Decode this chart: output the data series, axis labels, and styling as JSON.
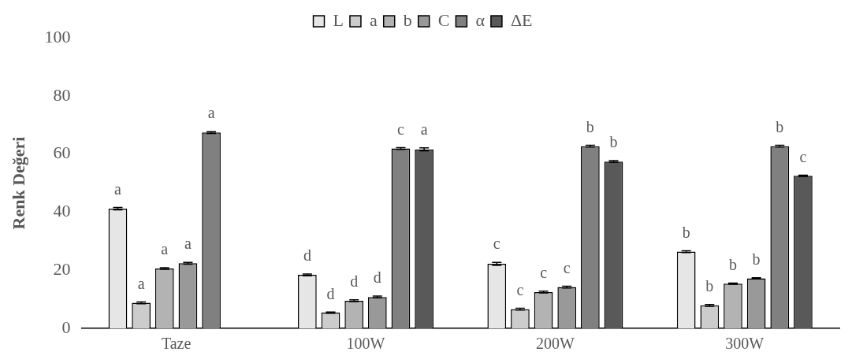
{
  "chart_data": {
    "type": "bar",
    "ylabel": "Renk Değeri",
    "categories": [
      "Taze",
      "100W",
      "200W",
      "300W"
    ],
    "series": [
      {
        "name": "L",
        "color": "#e6e6e6",
        "values": [
          41.2,
          18.4,
          22.2,
          26.4
        ],
        "errors": [
          0.4,
          0.3,
          0.5,
          0.3
        ],
        "value_labels": [
          "a",
          "d",
          "c",
          "b"
        ]
      },
      {
        "name": "a",
        "color": "#cccccc",
        "values": [
          8.8,
          5.4,
          6.6,
          7.9
        ],
        "errors": [
          0.3,
          0.2,
          0.3,
          0.3
        ],
        "value_labels": [
          "a",
          "d",
          "c",
          "b"
        ]
      },
      {
        "name": "b",
        "color": "#b3b3b3",
        "values": [
          20.6,
          9.5,
          12.5,
          15.4
        ],
        "errors": [
          0.3,
          0.3,
          0.3,
          0.2
        ],
        "value_labels": [
          "a",
          "d",
          "c",
          "b"
        ]
      },
      {
        "name": "C",
        "color": "#999999",
        "values": [
          22.4,
          10.8,
          14.2,
          17.2
        ],
        "errors": [
          0.3,
          0.3,
          0.3,
          0.2
        ],
        "value_labels": [
          "a",
          "d",
          "c",
          "b"
        ]
      },
      {
        "name": "α",
        "color": "#808080",
        "values": [
          67.4,
          61.9,
          62.7,
          62.7
        ],
        "errors": [
          0.3,
          0.3,
          0.3,
          0.3
        ],
        "value_labels": [
          "a",
          "c",
          "b",
          "b"
        ]
      },
      {
        "name": "ΔE",
        "color": "#595959",
        "values": [
          null,
          61.6,
          57.4,
          52.5
        ],
        "errors": [
          null,
          0.5,
          0.3,
          0.2
        ],
        "value_labels": [
          null,
          "a",
          "b",
          "c"
        ]
      }
    ],
    "ylim": [
      0,
      100
    ],
    "yticks": [
      0,
      20,
      40,
      60,
      80,
      100
    ],
    "grid": false,
    "legend": "top"
  }
}
